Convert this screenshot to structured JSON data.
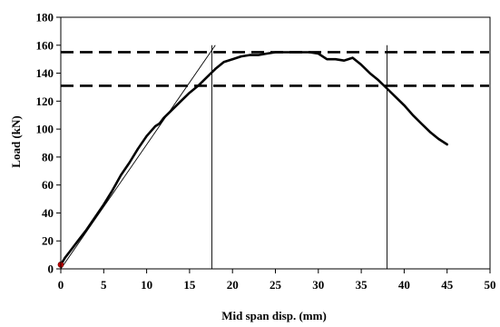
{
  "chart_data": {
    "type": "line",
    "title": "",
    "xlabel": "Mid span disp. (mm)",
    "ylabel": "Load (kN)",
    "xlim": [
      0,
      50
    ],
    "ylim": [
      0,
      180
    ],
    "xticks": [
      0,
      5,
      10,
      15,
      20,
      25,
      30,
      35,
      40,
      45,
      50
    ],
    "yticks": [
      0,
      20,
      40,
      60,
      80,
      100,
      120,
      140,
      160,
      180
    ],
    "grid": false,
    "legend": "none",
    "series": [
      {
        "x": [
          0,
          0.5,
          1,
          2,
          3,
          4,
          5,
          6,
          7,
          8,
          9,
          10,
          11,
          11.5,
          12,
          13,
          14,
          15,
          16,
          17,
          18,
          19,
          20,
          21,
          22,
          23,
          24,
          25,
          26,
          27,
          28,
          29,
          30,
          31,
          32,
          33,
          34,
          35,
          36,
          37,
          38,
          39,
          40,
          41,
          42,
          43,
          44,
          45
        ],
        "y": [
          3,
          8,
          12,
          20,
          28,
          37,
          46,
          56,
          67,
          76,
          86,
          95,
          102,
          104,
          108,
          114,
          120,
          126,
          131,
          137,
          143,
          148,
          150,
          152,
          153,
          153,
          154,
          155,
          155,
          155,
          155,
          155,
          154,
          150,
          150,
          149,
          151,
          146,
          140,
          135,
          129,
          123,
          117,
          110,
          104,
          98,
          93,
          89
        ],
        "color": "#000000"
      }
    ],
    "reference_lines": [
      {
        "orientation": "horizontal",
        "style": "dashed",
        "y": 155
      },
      {
        "orientation": "horizontal",
        "style": "dashed",
        "y": 131
      },
      {
        "orientation": "vertical",
        "style": "thin",
        "x": 17.6
      },
      {
        "orientation": "vertical",
        "style": "thin",
        "x": 38
      }
    ],
    "secant_line": {
      "x": [
        0,
        18
      ],
      "y": [
        0,
        160
      ]
    },
    "start_marker": {
      "x": 0,
      "y": 3,
      "color": "#cc0000"
    }
  }
}
